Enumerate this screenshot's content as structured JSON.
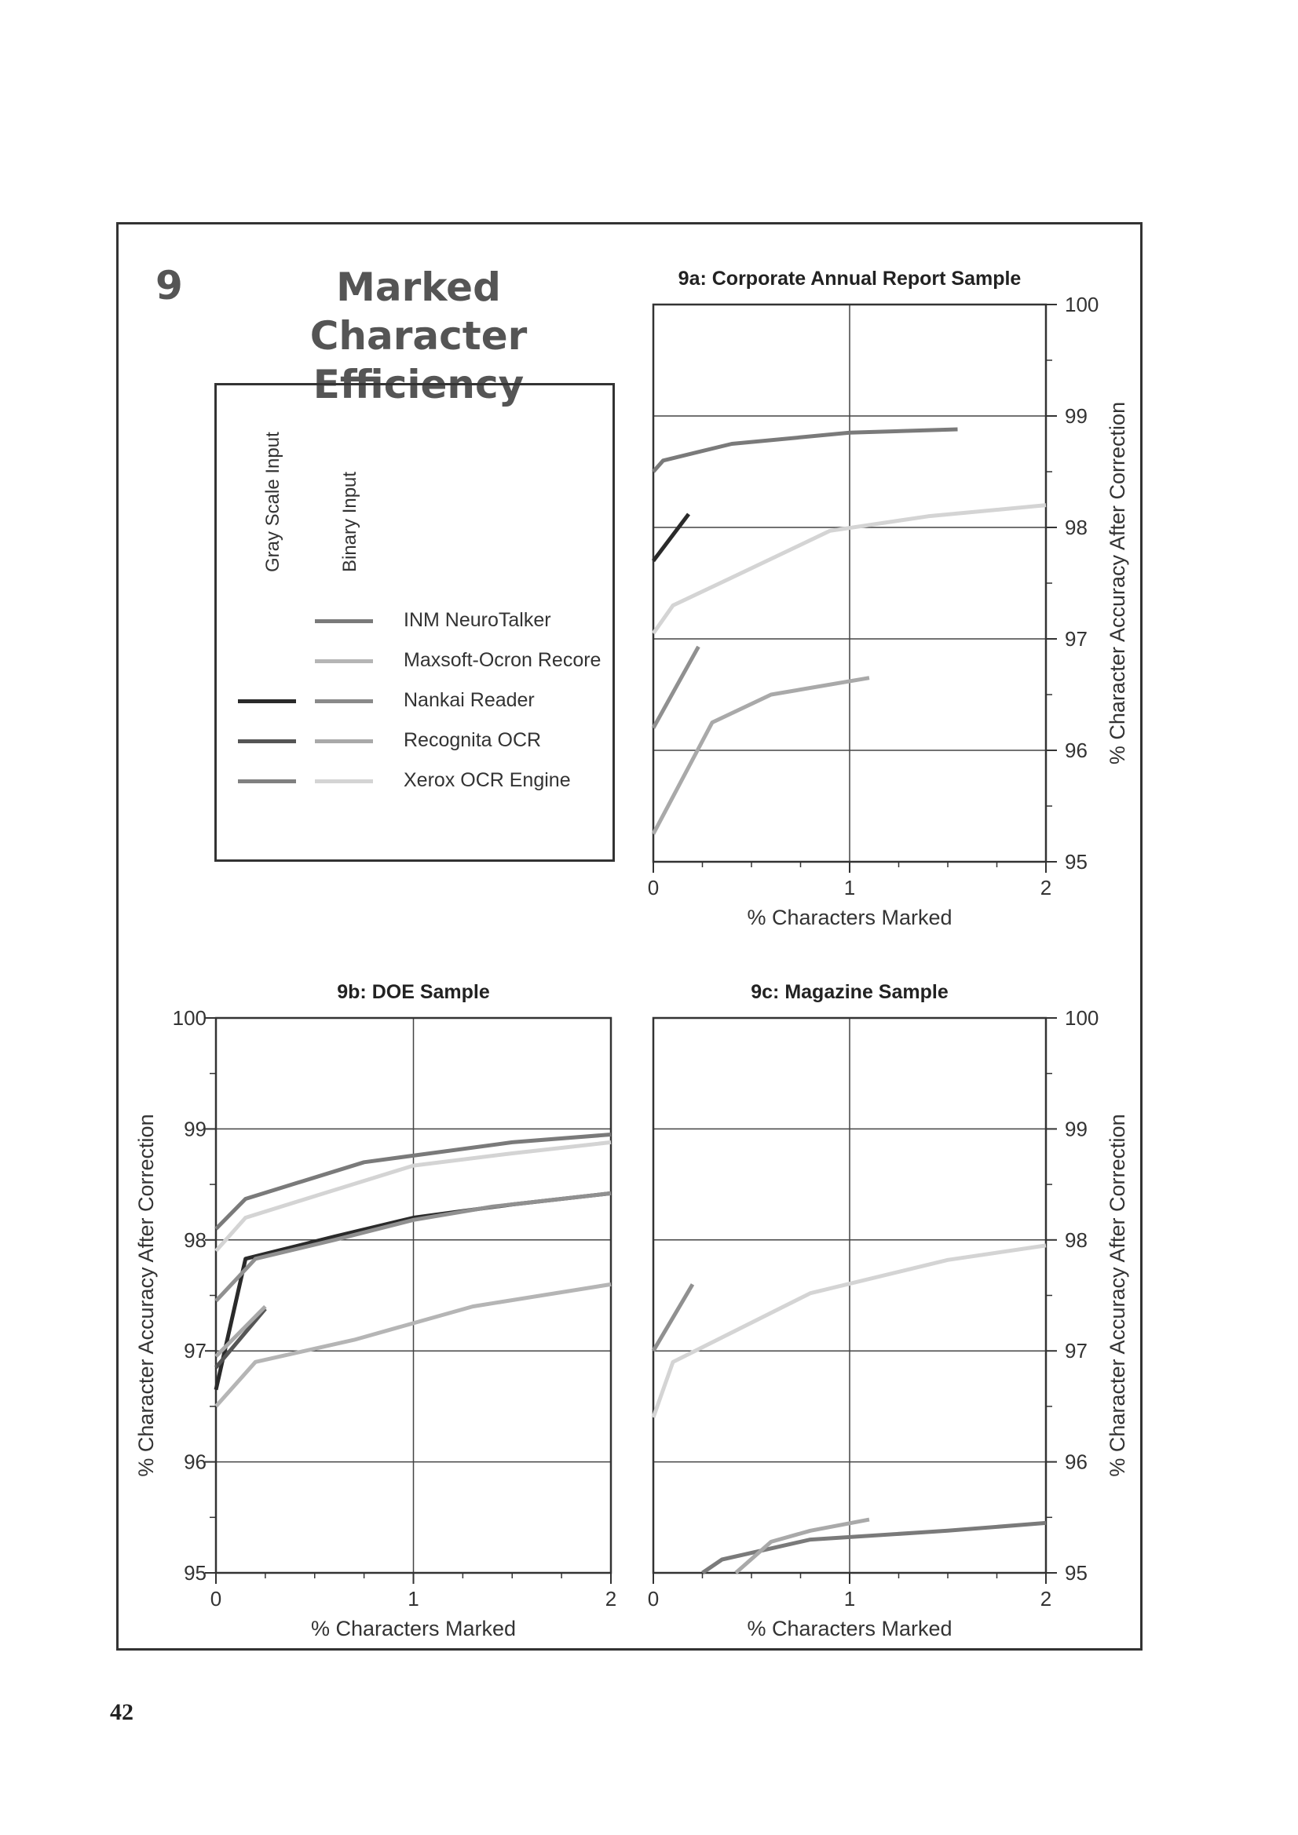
{
  "figure": {
    "number": "9",
    "title_lines": [
      "Marked Character",
      "Efficiency"
    ],
    "page_number": "42"
  },
  "legend": {
    "column_headers": [
      "Gray Scale Input",
      "Binary Input"
    ],
    "entries": [
      {
        "label": "INM NeuroTalker",
        "gray_color": null,
        "binary_color": "#7a7a7a"
      },
      {
        "label": "Maxsoft-Ocron Recore",
        "gray_color": null,
        "binary_color": "#b5b5b5"
      },
      {
        "label": "Nankai Reader",
        "gray_color": "#2a2a2a",
        "binary_color": "#8a8a8a"
      },
      {
        "label": "Recognita OCR",
        "gray_color": "#555555",
        "binary_color": "#a9a9a9"
      },
      {
        "label": "Xerox OCR Engine",
        "gray_color": "#808080",
        "binary_color": "#d4d4d4"
      }
    ]
  },
  "chart_data": [
    {
      "id": "9a",
      "type": "line",
      "title": "9a: Corporate Annual Report Sample",
      "xlabel": "% Characters Marked",
      "ylabel": "% Character Accuracy After Correction",
      "ylabel_side": "right",
      "xlim": [
        0,
        2
      ],
      "ylim": [
        95,
        100
      ],
      "xticks": [
        0,
        1,
        2
      ],
      "yticks": [
        95,
        96,
        97,
        98,
        99,
        100
      ],
      "grid": true,
      "series": [
        {
          "color": "#7a7a7a",
          "points": [
            [
              0,
              98.5
            ],
            [
              0.05,
              98.6
            ],
            [
              0.4,
              98.75
            ],
            [
              1.0,
              98.85
            ],
            [
              1.55,
              98.88
            ]
          ]
        },
        {
          "color": "#2a2a2a",
          "points": [
            [
              0,
              97.7
            ],
            [
              0.18,
              98.12
            ]
          ]
        },
        {
          "color": "#d4d4d4",
          "points": [
            [
              0,
              97.05
            ],
            [
              0.1,
              97.3
            ],
            [
              0.4,
              97.55
            ],
            [
              0.9,
              97.97
            ],
            [
              1.4,
              98.1
            ],
            [
              2.0,
              98.2
            ]
          ]
        },
        {
          "color": "#909090",
          "points": [
            [
              0,
              96.2
            ],
            [
              0.23,
              96.93
            ]
          ]
        },
        {
          "color": "#a9a9a9",
          "points": [
            [
              0,
              95.25
            ],
            [
              0.3,
              96.25
            ],
            [
              0.6,
              96.5
            ],
            [
              1.1,
              96.65
            ]
          ]
        }
      ]
    },
    {
      "id": "9b",
      "type": "line",
      "title": "9b: DOE Sample",
      "xlabel": "% Characters Marked",
      "ylabel": "% Character Accuracy After Correction",
      "ylabel_side": "left",
      "xlim": [
        0,
        2
      ],
      "ylim": [
        95,
        100
      ],
      "xticks": [
        0,
        1,
        2
      ],
      "yticks": [
        95,
        96,
        97,
        98,
        99,
        100
      ],
      "grid": true,
      "series": [
        {
          "color": "#7a7a7a",
          "points": [
            [
              0,
              98.1
            ],
            [
              0.15,
              98.37
            ],
            [
              0.75,
              98.7
            ],
            [
              1.5,
              98.88
            ],
            [
              2.0,
              98.95
            ]
          ]
        },
        {
          "color": "#d4d4d4",
          "points": [
            [
              0,
              97.9
            ],
            [
              0.15,
              98.2
            ],
            [
              0.6,
              98.45
            ],
            [
              1.0,
              98.67
            ],
            [
              1.5,
              98.78
            ],
            [
              2.0,
              98.88
            ]
          ]
        },
        {
          "color": "#2a2a2a",
          "points": [
            [
              0,
              96.65
            ],
            [
              0.15,
              97.83
            ],
            [
              0.6,
              98.03
            ],
            [
              1.0,
              98.2
            ],
            [
              1.5,
              98.32
            ],
            [
              2.0,
              98.42
            ]
          ]
        },
        {
          "color": "#909090",
          "points": [
            [
              0,
              97.45
            ],
            [
              0.2,
              97.83
            ],
            [
              0.6,
              98.0
            ],
            [
              1.0,
              98.18
            ],
            [
              1.4,
              98.3
            ],
            [
              2.0,
              98.42
            ]
          ]
        },
        {
          "color": "#555555",
          "points": [
            [
              0,
              96.85
            ],
            [
              0.25,
              97.38
            ]
          ]
        },
        {
          "color": "#a9a9a9",
          "points": [
            [
              0,
              96.95
            ],
            [
              0.25,
              97.4
            ]
          ]
        },
        {
          "color": "#b5b5b5",
          "points": [
            [
              0,
              96.5
            ],
            [
              0.2,
              96.9
            ],
            [
              0.7,
              97.1
            ],
            [
              1.3,
              97.4
            ],
            [
              2.0,
              97.6
            ]
          ]
        }
      ]
    },
    {
      "id": "9c",
      "type": "line",
      "title": "9c: Magazine Sample",
      "xlabel": "% Characters Marked",
      "ylabel": "% Character Accuracy After Correction",
      "ylabel_side": "right",
      "xlim": [
        0,
        2
      ],
      "ylim": [
        95,
        100
      ],
      "xticks": [
        0,
        1,
        2
      ],
      "yticks": [
        95,
        96,
        97,
        98,
        99,
        100
      ],
      "grid": true,
      "series": [
        {
          "color": "#909090",
          "points": [
            [
              0,
              97.0
            ],
            [
              0.2,
              97.6
            ]
          ]
        },
        {
          "color": "#d4d4d4",
          "points": [
            [
              0,
              96.4
            ],
            [
              0.1,
              96.9
            ],
            [
              0.8,
              97.52
            ],
            [
              1.5,
              97.82
            ],
            [
              2.0,
              97.95
            ]
          ]
        },
        {
          "color": "#7a7a7a",
          "points": [
            [
              0.25,
              95.0
            ],
            [
              0.35,
              95.12
            ],
            [
              0.8,
              95.3
            ],
            [
              1.5,
              95.38
            ],
            [
              2.0,
              95.45
            ]
          ]
        },
        {
          "color": "#a9a9a9",
          "points": [
            [
              0.42,
              95.0
            ],
            [
              0.6,
              95.28
            ],
            [
              0.8,
              95.38
            ],
            [
              1.1,
              95.48
            ]
          ]
        }
      ]
    }
  ]
}
